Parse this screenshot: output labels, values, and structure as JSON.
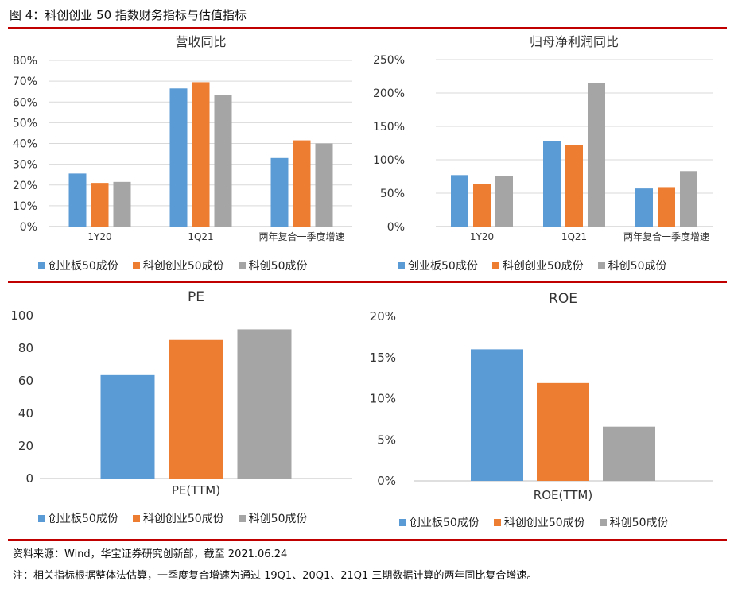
{
  "figure": {
    "title": "图 4：科创创业 50 指数财务指标与估值指标",
    "source": "资料来源：Wind，华宝证券研究创新部，截至 2021.06.24",
    "note": "注：相关指标根据整体法估算，一季度复合增速为通过 19Q1、20Q1、21Q1 三期数据计算的两年同比复合增速。"
  },
  "colors": {
    "series1": "#5b9bd5",
    "series2": "#ed7d31",
    "series3": "#a5a5a5",
    "accent_line": "#c00000"
  },
  "legend": [
    "创业板50成份",
    "科创创业50成份",
    "科创50成份"
  ],
  "chart_data": [
    {
      "type": "bar",
      "title": "营收同比",
      "categories": [
        "1Y20",
        "1Q21",
        "两年复合一季度增速"
      ],
      "series": [
        {
          "name": "创业板50成份",
          "values": [
            25.5,
            66.5,
            33
          ]
        },
        {
          "name": "科创创业50成份",
          "values": [
            21,
            69.5,
            41.5
          ]
        },
        {
          "name": "科创50成份",
          "values": [
            21.5,
            63.5,
            40
          ]
        }
      ],
      "ylim": [
        0,
        80
      ],
      "yticks": [
        0,
        10,
        20,
        30,
        40,
        50,
        60,
        70,
        80
      ],
      "ytick_labels": [
        "0%",
        "10%",
        "20%",
        "30%",
        "40%",
        "50%",
        "60%",
        "70%",
        "80%"
      ],
      "xlabel": "",
      "ylabel": "",
      "grid": true
    },
    {
      "type": "bar",
      "title": "归母净利润同比",
      "categories": [
        "1Y20",
        "1Q21",
        "两年复合一季度增速"
      ],
      "series": [
        {
          "name": "创业板50成份",
          "values": [
            77,
            128,
            57
          ]
        },
        {
          "name": "科创创业50成份",
          "values": [
            64,
            122,
            59
          ]
        },
        {
          "name": "科创50成份",
          "values": [
            76,
            215,
            83
          ]
        }
      ],
      "ylim": [
        0,
        250
      ],
      "yticks": [
        0,
        50,
        100,
        150,
        200,
        250
      ],
      "ytick_labels": [
        "0%",
        "50%",
        "100%",
        "150%",
        "200%",
        "250%"
      ],
      "xlabel": "",
      "ylabel": "",
      "grid": true
    },
    {
      "type": "bar",
      "title": "PE",
      "categories": [
        "PE(TTM)"
      ],
      "series": [
        {
          "name": "创业板50成份",
          "values": [
            63.5
          ]
        },
        {
          "name": "科创创业50成份",
          "values": [
            85
          ]
        },
        {
          "name": "科创50成份",
          "values": [
            91.5
          ]
        }
      ],
      "ylim": [
        0,
        100
      ],
      "yticks": [
        0,
        20,
        40,
        60,
        80,
        100
      ],
      "ytick_labels": [
        "0",
        "20",
        "40",
        "60",
        "80",
        "100"
      ],
      "xlabel": "",
      "ylabel": "",
      "grid": false
    },
    {
      "type": "bar",
      "title": "ROE",
      "categories": [
        "ROE(TTM)"
      ],
      "series": [
        {
          "name": "创业板50成份",
          "values": [
            16
          ]
        },
        {
          "name": "科创创业50成份",
          "values": [
            11.9
          ]
        },
        {
          "name": "科创50成份",
          "values": [
            6.6
          ]
        }
      ],
      "ylim": [
        0,
        20
      ],
      "yticks": [
        0,
        5,
        10,
        15,
        20
      ],
      "ytick_labels": [
        "0%",
        "5%",
        "10%",
        "15%",
        "20%"
      ],
      "xlabel": "",
      "ylabel": "",
      "grid": false
    }
  ]
}
